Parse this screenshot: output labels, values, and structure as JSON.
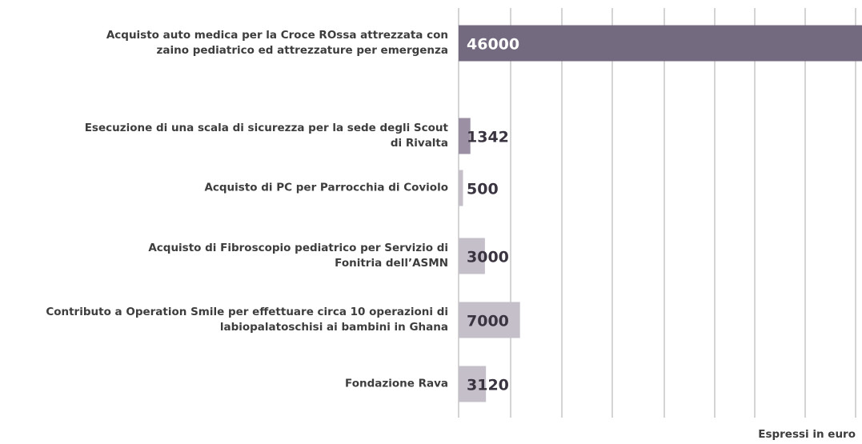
{
  "chart_data": {
    "type": "barh",
    "categories": [
      "Acquisto auto medica per la Croce ROssa attrezzata con zaino pediatrico ed attrezzature per emergenza",
      "Esecuzione di una scala di sicurezza per la sede degli Scout di Rivalta",
      "Acquisto di PC per Parrocchia di Coviolo",
      "Acquisto di Fibroscopio pediatrico per Servizio di Fonitria dell’ASMN",
      "Contributo a Operation Smile per effettuare circa 10 operazioni di labiopalatoschisi ai bambini in Ghana",
      "Fondazione Rava"
    ],
    "values": [
      46000,
      1342,
      500,
      3000,
      7000,
      3120
    ],
    "colors": [
      "#736a7f",
      "#9b8fa3",
      "#c5bfc9",
      "#c5bfc9",
      "#c5bfc9",
      "#c5bfc9"
    ],
    "xlim": [
      0,
      46000
    ],
    "note": "Espressi in euro"
  }
}
